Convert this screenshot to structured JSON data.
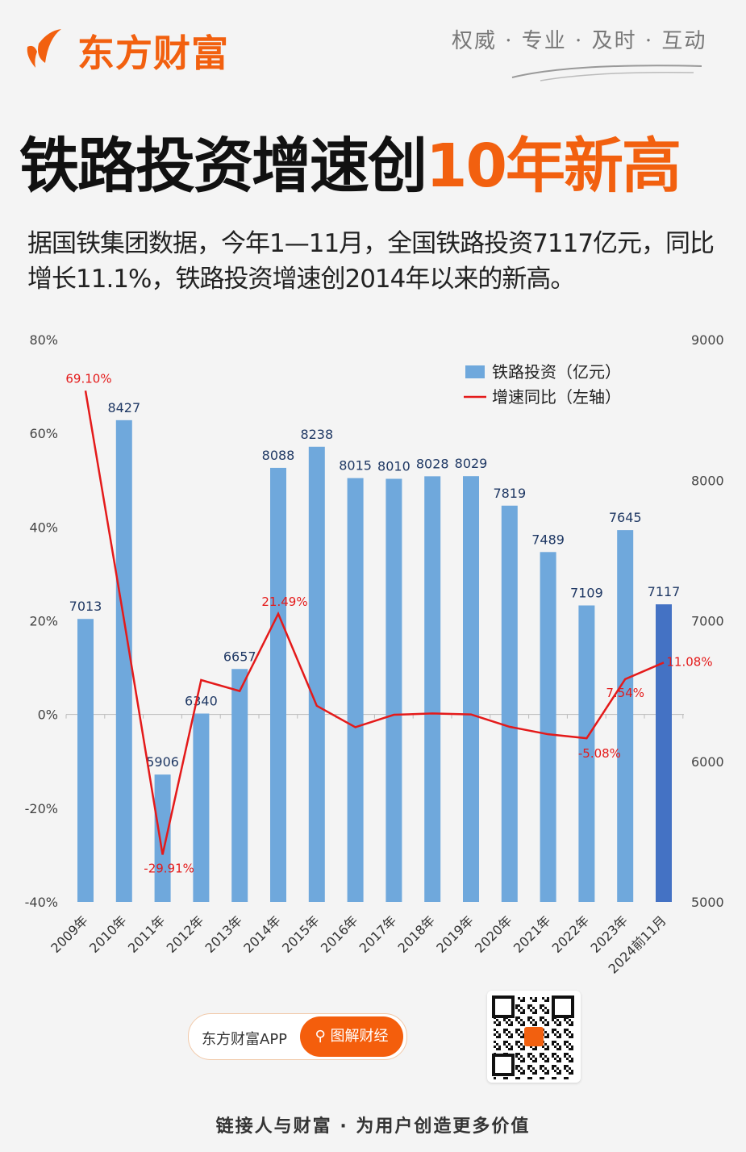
{
  "header": {
    "brand": "东方财富",
    "slogan": "权威 · 专业 · 及时 · 互动"
  },
  "title": {
    "main": "铁路投资增速创",
    "highlight": "10年新高"
  },
  "intro": "据国铁集团数据，今年1—11月，全国铁路投资7117亿元，同比增长11.1%，铁路投资增速创2014年以来的新高。",
  "chart_data": {
    "type": "bar+line",
    "categories": [
      "2009年",
      "2010年",
      "2011年",
      "2012年",
      "2013年",
      "2014年",
      "2015年",
      "2016年",
      "2017年",
      "2018年",
      "2019年",
      "2020年",
      "2021年",
      "2022年",
      "2023年",
      "2024前11月"
    ],
    "series": [
      {
        "name": "铁路投资（亿元）",
        "type": "bar",
        "axis": "right",
        "values": [
          7013,
          8427,
          5906,
          6340,
          6657,
          8088,
          8238,
          8015,
          8010,
          8028,
          8029,
          7819,
          7489,
          7109,
          7645,
          7117
        ],
        "labels": [
          "7013",
          "8427",
          "5906",
          "6340",
          "6657",
          "8088",
          "8238",
          "8015",
          "8010",
          "8028",
          "8029",
          "7819",
          "7489",
          "7109",
          "7645",
          "7117"
        ]
      },
      {
        "name": "增速同比（左轴）",
        "type": "line",
        "axis": "left",
        "values": [
          69.1,
          20.16,
          -29.91,
          7.35,
          5.0,
          21.49,
          1.85,
          -2.71,
          -0.06,
          0.22,
          0.01,
          -2.62,
          -4.22,
          -5.08,
          7.54,
          11.08
        ],
        "labels": [
          "69.10%",
          null,
          "-29.91%",
          null,
          null,
          "21.49%",
          null,
          null,
          null,
          null,
          null,
          null,
          null,
          "-5.08%",
          "7.54%",
          "11.08%"
        ]
      }
    ],
    "left_axis": {
      "range": [
        -40,
        80
      ],
      "ticks": [
        "-40%",
        "-20%",
        "0%",
        "20%",
        "40%",
        "60%",
        "80%"
      ]
    },
    "right_axis": {
      "range": [
        5000,
        9000
      ],
      "ticks": [
        "5000",
        "6000",
        "7000",
        "8000",
        "9000"
      ]
    },
    "legend_placement": "top-right",
    "colors": {
      "bar": "#6fa8dc",
      "bar_highlight": "#4472c4",
      "line": "#e41a1a"
    }
  },
  "promo": {
    "app": "东方财富APP",
    "search": "图解财经"
  },
  "footer": "链接人与财富 · 为用户创造更多价值"
}
